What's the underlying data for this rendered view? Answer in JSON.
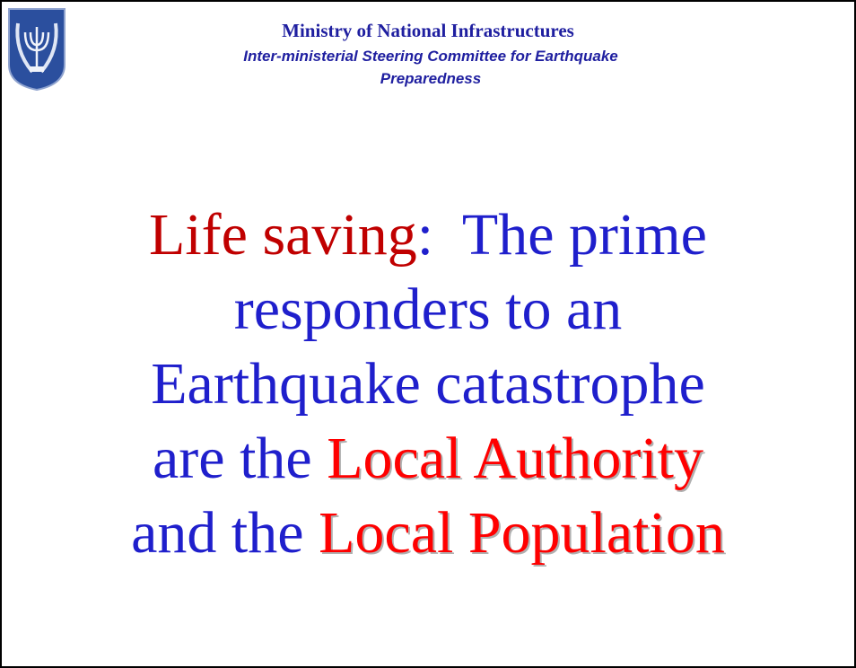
{
  "header": {
    "title": "Ministry of National Infrastructures",
    "subtitle": "Inter-ministerial Steering Committee for Earthquake Preparedness"
  },
  "body": {
    "lines": [
      [
        {
          "text": "Life saving",
          "color": "#c00000"
        },
        {
          "text": ":  The prime",
          "color": "#1f1fcc"
        }
      ],
      [
        {
          "text": "responders to an",
          "color": "#1f1fcc"
        }
      ],
      [
        {
          "text": "Earthquake catastrophe",
          "color": "#1f1fcc"
        }
      ],
      [
        {
          "text": "are the ",
          "color": "#1f1fcc"
        },
        {
          "text": "Local Authority",
          "color": "#ff0000",
          "shadow": true
        }
      ],
      [
        {
          "text": "and the ",
          "color": "#1f1fcc"
        },
        {
          "text": "Local Population",
          "color": "#ff0000",
          "shadow": true
        }
      ]
    ]
  }
}
